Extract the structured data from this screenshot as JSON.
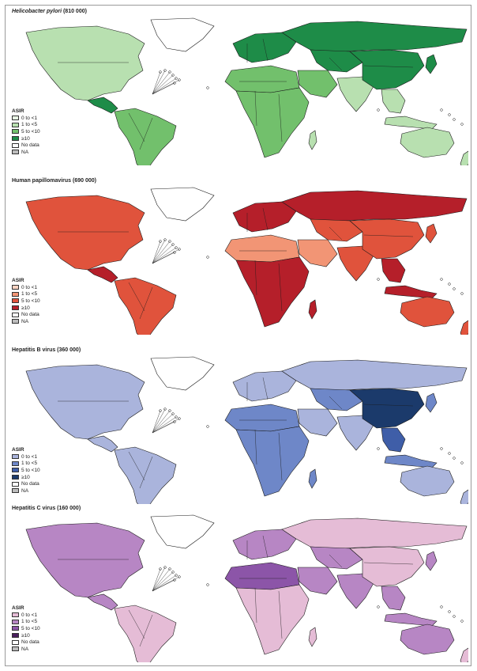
{
  "panels": [
    {
      "title_italic": "Helicobacter pylori",
      "title_rest": " (810 000)",
      "palette": [
        "#e8f5e4",
        "#b8e0b0",
        "#72c06c",
        "#1e8c48"
      ],
      "legend": {
        "title": "ASIR",
        "items": [
          "0 to <1",
          "1 to <5",
          "5 to <10",
          "≥10",
          "No data",
          "NA"
        ]
      },
      "regions": {
        "north_america": 1,
        "greenland": 0,
        "central_america": 3,
        "south_america": 2,
        "europe": 3,
        "africa_north": 2,
        "africa_sub": 2,
        "middle_east": 2,
        "russia": 3,
        "central_asia": 3,
        "south_asia": 1,
        "china": 3,
        "se_asia": 1,
        "japan": 3,
        "indonesia": 1,
        "australia": 1,
        "new_zealand": 1,
        "madagascar": 1
      }
    },
    {
      "title_italic": "",
      "title_rest": "Human papillomavirus (690 000)",
      "palette": [
        "#fbd3c2",
        "#f29575",
        "#e0533c",
        "#b51f2a"
      ],
      "legend": {
        "title": "ASIR",
        "items": [
          "0 to <1",
          "1 to <5",
          "5 to <10",
          "≥10",
          "No data",
          "NA"
        ]
      },
      "regions": {
        "north_america": 2,
        "greenland": 0,
        "central_america": 3,
        "south_america": 2,
        "europe": 3,
        "africa_north": 1,
        "africa_sub": 3,
        "middle_east": 1,
        "russia": 3,
        "central_asia": 2,
        "south_asia": 2,
        "china": 2,
        "se_asia": 3,
        "japan": 2,
        "indonesia": 3,
        "australia": 2,
        "new_zealand": 2,
        "madagascar": 3
      }
    },
    {
      "title_italic": "",
      "title_rest": "Hepatitis B virus (360 000)",
      "palette": [
        "#aab4dc",
        "#6e87c8",
        "#3f5ea8",
        "#1b3a6b"
      ],
      "legend": {
        "title": "ASIR",
        "items": [
          "0 to <1",
          "1 to <5",
          "5 to <10",
          "≥10",
          "No data",
          "NA"
        ]
      },
      "regions": {
        "north_america": 0,
        "greenland": 0,
        "central_america": 0,
        "south_america": 0,
        "europe": 0,
        "africa_north": 1,
        "africa_sub": 1,
        "middle_east": 0,
        "russia": 0,
        "central_asia": 1,
        "south_asia": 0,
        "china": 3,
        "se_asia": 2,
        "japan": 1,
        "indonesia": 1,
        "australia": 0,
        "new_zealand": 0,
        "madagascar": 1
      }
    },
    {
      "title_italic": "",
      "title_rest": "Hepatitis C virus (160 000)",
      "palette": [
        "#e5bcd6",
        "#b786c4",
        "#8c55a8",
        "#4a1f5e"
      ],
      "legend": {
        "title": "ASIR",
        "items": [
          "0 to <1",
          "1 to <5",
          "5 to <10",
          "≥10",
          "No data",
          "NA"
        ]
      },
      "regions": {
        "north_america": 1,
        "greenland": 0,
        "central_america": 1,
        "south_america": 0,
        "europe": 1,
        "africa_north": 2,
        "africa_sub": 0,
        "middle_east": 1,
        "russia": 0,
        "central_asia": 1,
        "south_asia": 1,
        "china": 0,
        "se_asia": 1,
        "japan": 1,
        "indonesia": 1,
        "australia": 1,
        "new_zealand": 0,
        "madagascar": 0
      }
    }
  ],
  "nodata_color": "#ffffff",
  "na_color": "#bdbdbd"
}
